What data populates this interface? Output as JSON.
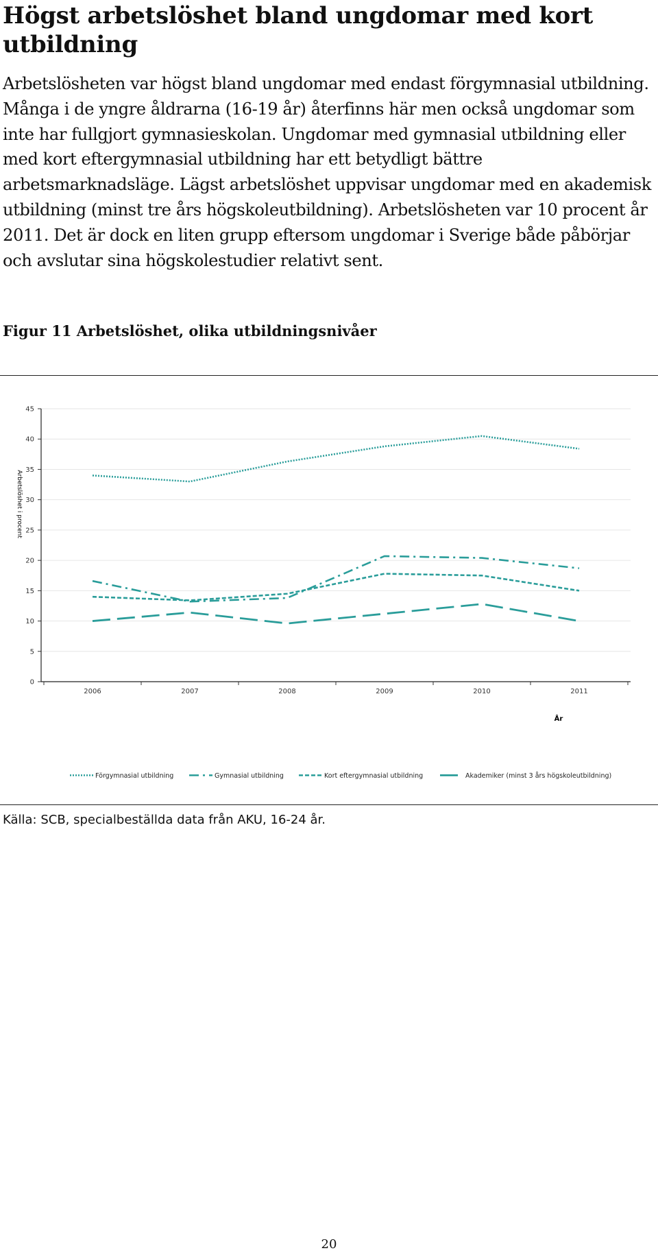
{
  "page": {
    "heading": "Högst arbetslöshet bland ungdomar med kort utbildning",
    "intro": "Arbetslösheten var högst bland ungdomar med endast förgymnasial utbildning. Många i de yngre åldrarna (16-19 år) återfinns här men också ungdomar som inte har fullgjort gymnasieskolan. Ungdomar med gymnasial utbildning eller med kort eftergymnasial utbildning har ett betydligt bättre arbetsmarknadsläge. Lägst arbetslöshet uppvisar ungdomar med en akademisk utbildning (minst tre års högskoleutbildning). Arbetslösheten var 10 procent år 2011. Det är dock en liten grupp eftersom ungdomar i Sverige både påbörjar och avslutar sina högskolestudier relativt sent.",
    "figure_caption": "Figur 11 Arbetslöshet, olika utbildningsnivåer",
    "source": "Källa: SCB, specialbeställda data från AKU, 16-24 år.",
    "page_number": "20"
  },
  "chart_data": {
    "type": "line",
    "title": "",
    "xlabel": "År",
    "ylabel": "Arbetslöshet i procent",
    "x": [
      2006,
      2007,
      2008,
      2009,
      2010,
      2011
    ],
    "x_tick_labels": [
      "2006",
      "2007",
      "2008",
      "2009",
      "2010",
      "2011"
    ],
    "y_ticks": [
      "0",
      "5",
      "10",
      "15",
      "20",
      "25",
      "30",
      "35",
      "40",
      "45"
    ],
    "ylim": [
      0,
      45
    ],
    "grid": true,
    "legend_position": "bottom",
    "color": "#2a9d9a",
    "series": [
      {
        "name": "Förgymnasial utbildning",
        "style": "dotted",
        "values": [
          34.0,
          33.0,
          36.3,
          38.8,
          40.5,
          38.4
        ]
      },
      {
        "name": "Gymnasial utbildning",
        "style": "dash-dot",
        "values": [
          16.6,
          13.2,
          13.8,
          20.7,
          20.4,
          18.7
        ]
      },
      {
        "name": "Kort eftergymnasial utbildning",
        "style": "short-dash",
        "values": [
          14.0,
          13.4,
          14.5,
          17.8,
          17.5,
          15.0
        ]
      },
      {
        "name": "Akademiker (minst 3 års högskoleutbildning)",
        "style": "long-dash",
        "values": [
          10.0,
          11.4,
          9.6,
          11.2,
          12.8,
          10.0
        ]
      }
    ]
  }
}
